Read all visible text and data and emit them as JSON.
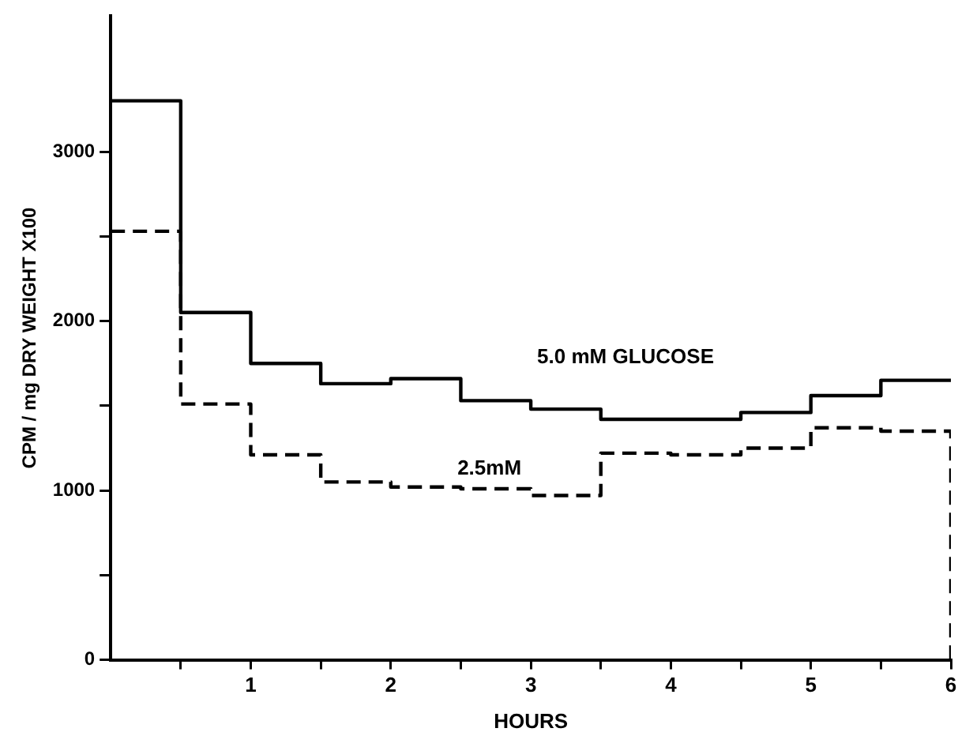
{
  "chart_data": {
    "type": "step",
    "xlabel": "HOURS",
    "ylabel": "CPM / mg DRY WEIGHT X100",
    "x": [
      0,
      0.5,
      1,
      1.5,
      2,
      2.5,
      3,
      3.5,
      4,
      4.5,
      5,
      5.5,
      6
    ],
    "series": [
      {
        "name": "5.0 mM GLUCOSE",
        "color": "#000000",
        "line_style": "solid",
        "values": [
          3300,
          2050,
          1750,
          1630,
          1660,
          1530,
          1480,
          1420,
          1420,
          1460,
          1560,
          1650,
          1650
        ]
      },
      {
        "name": "2.5mM",
        "color": "#000000",
        "line_style": "dashed",
        "values": [
          2530,
          1510,
          1210,
          1050,
          1020,
          1010,
          970,
          1220,
          1210,
          1250,
          1370,
          1350,
          0
        ]
      }
    ],
    "xlim": [
      0,
      6
    ],
    "xticks": [
      {
        "value": 0.5,
        "label": null
      },
      1,
      {
        "value": 1.5,
        "label": null
      },
      2,
      {
        "value": 2.5,
        "label": null
      },
      3,
      {
        "value": 3.5,
        "label": null
      },
      4,
      {
        "value": 4.5,
        "label": null
      },
      5,
      {
        "value": 5.5,
        "label": null
      },
      6
    ],
    "ylim": [
      0,
      3800
    ],
    "yticks": [
      0,
      {
        "value": 500,
        "label": null
      },
      1000,
      {
        "value": 1500,
        "label": null
      },
      2000,
      {
        "value": 2500,
        "label": null
      },
      3000
    ],
    "grid": false,
    "legend": false,
    "marker": "none"
  }
}
